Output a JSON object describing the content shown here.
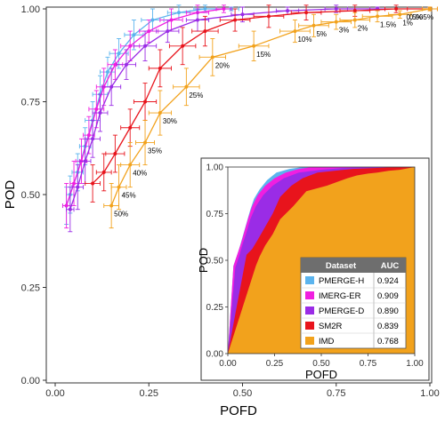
{
  "chart_data": {
    "type": "line",
    "title": "",
    "xlabel": "POFD",
    "ylabel": "POD",
    "xlim": [
      0,
      1
    ],
    "ylim": [
      0,
      1
    ],
    "xticks": [
      "0.00",
      "0.25",
      "0.50",
      "0.75",
      "1.00"
    ],
    "yticks": [
      "0.00",
      "0.25",
      "0.50",
      "0.75",
      "1.00"
    ],
    "grid": false,
    "series": [
      {
        "name": "PMERGE-H",
        "color": "#5BB4EE",
        "points": [
          [
            0.03,
            0.47
          ],
          [
            0.04,
            0.5
          ],
          [
            0.06,
            0.56
          ],
          [
            0.08,
            0.63
          ],
          [
            0.1,
            0.7
          ],
          [
            0.12,
            0.77
          ],
          [
            0.14,
            0.83
          ],
          [
            0.17,
            0.88
          ],
          [
            0.21,
            0.93
          ],
          [
            0.26,
            0.97
          ],
          [
            0.33,
            0.99
          ],
          [
            0.4,
            1.0
          ],
          [
            0.47,
            1.0
          ]
        ],
        "xerr": [
          0.01,
          0.01,
          0.015,
          0.015,
          0.02,
          0.02,
          0.02,
          0.025,
          0.025,
          0.03,
          0.03,
          0.03,
          0.02
        ],
        "yerr": [
          0.05,
          0.05,
          0.05,
          0.05,
          0.05,
          0.05,
          0.04,
          0.04,
          0.04,
          0.03,
          0.02,
          0.01,
          0.005
        ]
      },
      {
        "name": "IMERG-ER",
        "color": "#F01FE0",
        "points": [
          [
            0.03,
            0.47
          ],
          [
            0.05,
            0.53
          ],
          [
            0.07,
            0.59
          ],
          [
            0.09,
            0.66
          ],
          [
            0.11,
            0.73
          ],
          [
            0.13,
            0.79
          ],
          [
            0.16,
            0.85
          ],
          [
            0.2,
            0.9
          ],
          [
            0.25,
            0.94
          ],
          [
            0.31,
            0.97
          ],
          [
            0.38,
            0.99
          ],
          [
            0.45,
            1.0
          ]
        ],
        "xerr": [
          0.01,
          0.01,
          0.015,
          0.015,
          0.02,
          0.02,
          0.02,
          0.025,
          0.025,
          0.03,
          0.03,
          0.02
        ],
        "yerr": [
          0.06,
          0.06,
          0.06,
          0.05,
          0.05,
          0.05,
          0.04,
          0.04,
          0.03,
          0.03,
          0.02,
          0.01
        ]
      },
      {
        "name": "PMERGE-D",
        "color": "#9A2CE6",
        "points": [
          [
            0.04,
            0.46
          ],
          [
            0.06,
            0.52
          ],
          [
            0.08,
            0.59
          ],
          [
            0.1,
            0.65
          ],
          [
            0.12,
            0.72
          ],
          [
            0.15,
            0.79
          ],
          [
            0.19,
            0.85
          ],
          [
            0.24,
            0.9
          ],
          [
            0.3,
            0.94
          ],
          [
            0.38,
            0.97
          ],
          [
            0.5,
            0.985
          ],
          [
            0.62,
            0.995
          ],
          [
            0.75,
            1.0
          ],
          [
            0.86,
            1.0
          ]
        ],
        "xerr": [
          0.01,
          0.015,
          0.015,
          0.02,
          0.02,
          0.025,
          0.025,
          0.03,
          0.03,
          0.03,
          0.03,
          0.03,
          0.03,
          0.02
        ],
        "yerr": [
          0.06,
          0.06,
          0.06,
          0.05,
          0.05,
          0.05,
          0.04,
          0.04,
          0.03,
          0.03,
          0.02,
          0.01,
          0.01,
          0.005
        ]
      },
      {
        "name": "SM2R",
        "color": "#E8141C",
        "points": [
          [
            0.1,
            0.53
          ],
          [
            0.13,
            0.56
          ],
          [
            0.16,
            0.61
          ],
          [
            0.2,
            0.68
          ],
          [
            0.24,
            0.75
          ],
          [
            0.28,
            0.84
          ],
          [
            0.34,
            0.9
          ],
          [
            0.4,
            0.94
          ],
          [
            0.48,
            0.97
          ],
          [
            0.57,
            0.98
          ],
          [
            0.67,
            0.99
          ],
          [
            0.8,
            0.995
          ],
          [
            0.91,
            1.0
          ],
          [
            1.0,
            1.0
          ]
        ],
        "xerr": [
          0.02,
          0.02,
          0.025,
          0.025,
          0.03,
          0.03,
          0.035,
          0.035,
          0.04,
          0.04,
          0.04,
          0.04,
          0.03,
          0.02
        ],
        "yerr": [
          0.05,
          0.05,
          0.05,
          0.05,
          0.05,
          0.05,
          0.05,
          0.04,
          0.03,
          0.03,
          0.02,
          0.015,
          0.01,
          0.005
        ]
      },
      {
        "name": "IMD",
        "color": "#F2A21C",
        "points": [
          [
            0.15,
            0.47
          ],
          [
            0.17,
            0.52
          ],
          [
            0.2,
            0.58
          ],
          [
            0.24,
            0.64
          ],
          [
            0.28,
            0.72
          ],
          [
            0.35,
            0.79
          ],
          [
            0.42,
            0.87
          ],
          [
            0.53,
            0.9
          ],
          [
            0.64,
            0.94
          ],
          [
            0.69,
            0.955
          ],
          [
            0.75,
            0.965
          ],
          [
            0.8,
            0.97
          ],
          [
            0.86,
            0.98
          ],
          [
            0.92,
            0.985
          ],
          [
            1.0,
            1.0
          ]
        ],
        "xerr": [
          0.02,
          0.02,
          0.025,
          0.025,
          0.03,
          0.035,
          0.035,
          0.04,
          0.04,
          0.04,
          0.04,
          0.04,
          0.04,
          0.03,
          0.02
        ],
        "yerr": [
          0.06,
          0.06,
          0.06,
          0.06,
          0.06,
          0.05,
          0.05,
          0.04,
          0.03,
          0.03,
          0.02,
          0.02,
          0.015,
          0.01,
          0.005
        ]
      }
    ],
    "threshold_labels": [
      {
        "text": "50%",
        "x": 0.15,
        "y": 0.47
      },
      {
        "text": "45%",
        "x": 0.17,
        "y": 0.52
      },
      {
        "text": "40%",
        "x": 0.2,
        "y": 0.58
      },
      {
        "text": "35%",
        "x": 0.24,
        "y": 0.64
      },
      {
        "text": "30%",
        "x": 0.28,
        "y": 0.72
      },
      {
        "text": "25%",
        "x": 0.35,
        "y": 0.79
      },
      {
        "text": "20%",
        "x": 0.42,
        "y": 0.87
      },
      {
        "text": "15%",
        "x": 0.53,
        "y": 0.9
      },
      {
        "text": "10%",
        "x": 0.64,
        "y": 0.94
      },
      {
        "text": "5%",
        "x": 0.69,
        "y": 0.955
      },
      {
        "text": "3%",
        "x": 0.75,
        "y": 0.965
      },
      {
        "text": "2%",
        "x": 0.8,
        "y": 0.97
      },
      {
        "text": "1.5%",
        "x": 0.86,
        "y": 0.98
      },
      {
        "text": "1%",
        "x": 0.92,
        "y": 0.985
      },
      {
        "text": "0.5%",
        "x": 0.93,
        "y": 1.0
      },
      {
        "text": "0.005%",
        "x": 1.0,
        "y": 1.0
      }
    ],
    "inset": {
      "type": "area",
      "xlabel": "POFD",
      "ylabel": "POD",
      "xlim": [
        0,
        1
      ],
      "ylim": [
        0,
        1
      ],
      "xticks": [
        "0.00",
        "0.25",
        "0.50",
        "0.75",
        "1.00"
      ],
      "yticks": [
        "0.00",
        "0.25",
        "0.50",
        "0.75",
        "1.00"
      ],
      "legend": {
        "headers": [
          "Dataset",
          "AUC"
        ],
        "rows": [
          {
            "name": "PMERGE-H",
            "auc": "0.924",
            "color": "#5BB4EE"
          },
          {
            "name": "IMERG-ER",
            "auc": "0.909",
            "color": "#F01FE0"
          },
          {
            "name": "PMERGE-D",
            "auc": "0.890",
            "color": "#9A2CE6"
          },
          {
            "name": "SM2R",
            "auc": "0.839",
            "color": "#E8141C"
          },
          {
            "name": "IMD",
            "auc": "0.768",
            "color": "#F2A21C"
          }
        ]
      }
    }
  }
}
